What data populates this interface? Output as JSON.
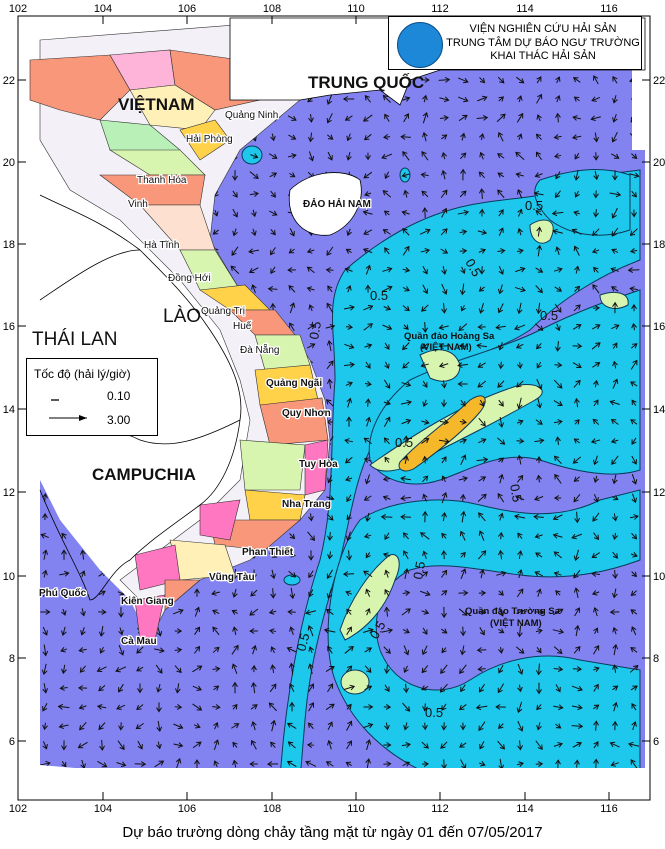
{
  "header": {
    "line1": "VIỆN NGHIÊN CỨU HẢI SẢN",
    "line2": "TRUNG TÂM DỰ BÁO NGƯ TRƯỜNG",
    "line3": "KHAI THÁC HẢI SẢN",
    "logo_icon": "institute-logo-ship"
  },
  "legend": {
    "title": "Tốc độ (hải lý/giờ)",
    "items": [
      {
        "value": "0.10",
        "arrow": "short"
      },
      {
        "value": "3.00",
        "arrow": "long"
      }
    ]
  },
  "axes": {
    "longitude_ticks": [
      "102",
      "104",
      "106",
      "108",
      "110",
      "112",
      "114",
      "116"
    ],
    "latitude_ticks": [
      "22",
      "20",
      "18",
      "16",
      "14",
      "12",
      "10",
      "8",
      "6"
    ]
  },
  "countries": {
    "vietnam": "VIỆTNAM",
    "china": "TRUNG QUỐC",
    "laos": "LÀO",
    "thailand": "THÁI LAN",
    "cambodia": "CAMPUCHIA",
    "hainan": "ĐẢO HẢI NAM"
  },
  "places": {
    "quang_ninh": "Quảng Ninh",
    "hai_phong": "Hải Phòng",
    "thanh_hoa": "Thanh Hóa",
    "vinh": "Vinh",
    "ha_tinh": "Hà Tĩnh",
    "dong_hoi": "Đồng Hới",
    "quang_tri": "Quảng Trị",
    "hue": "Huế",
    "da_nang": "Đà Nẵng",
    "quang_ngai": "Quảng Ngãi",
    "quy_nhon": "Quy Nhơn",
    "tuy_hoa": "Tuy Hòa",
    "nha_trang": "Nha Trang",
    "phan_thiet": "Phan Thiết",
    "vung_tau": "Vũng Tàu",
    "kien_giang": "Kiên Giang",
    "ca_mau": "Cà Mau",
    "phu_quoc": "Phú Quốc"
  },
  "archipelagos": {
    "hoang_sa": "Quần đảo Hoàng Sa",
    "hoang_sa_country": "(VIỆT NAM)",
    "truong_sa": "Quần đảo Trường Sa",
    "truong_sa_country": "(VIỆT NAM)"
  },
  "contour_label": "0.5",
  "colors": {
    "sea": "#8282f0",
    "speed_over_0_5": "#1ec8ec",
    "speed_over_1_0": "#d8f5b0",
    "speed_over_1_5": "#f4b82a"
  },
  "caption": "Dự báo trường dòng chảy tầng mặt từ ngày 01 đến 07/05/2017"
}
